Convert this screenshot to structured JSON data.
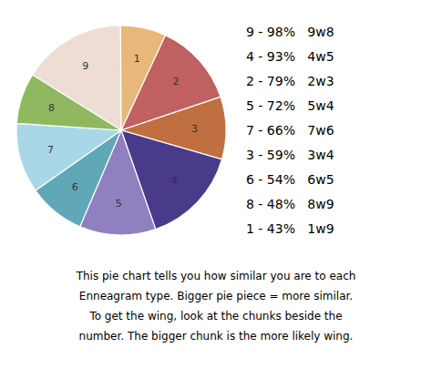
{
  "chart_data": {
    "type": "pie",
    "categories": [
      "9",
      "1",
      "2",
      "3",
      "4",
      "5",
      "6",
      "7",
      "8"
    ],
    "values": [
      98,
      43,
      79,
      59,
      93,
      72,
      54,
      66,
      48
    ],
    "colors": [
      "#edddd5",
      "#e8b87a",
      "#c06060",
      "#c07040",
      "#4a3a8a",
      "#9080c0",
      "#60a8b8",
      "#a8d8e8",
      "#90b860"
    ],
    "legend_entries": [
      "9 - 98%   9w8",
      "4 - 93%   4w5",
      "2 - 79%   2w3",
      "5 - 72%   5w4",
      "7 - 66%   7w6",
      "3 - 59%   3w4",
      "6 - 54%   6w5",
      "8 - 48%   8w9",
      "1 - 43%   1w9"
    ],
    "footnote": "This pie chart tells you how similar you are to each\nEnneagram type. Bigger pie piece = more similar.\nTo get the wing, look at the chunks beside the\nnumber. The bigger chunk is the more likely wing."
  }
}
